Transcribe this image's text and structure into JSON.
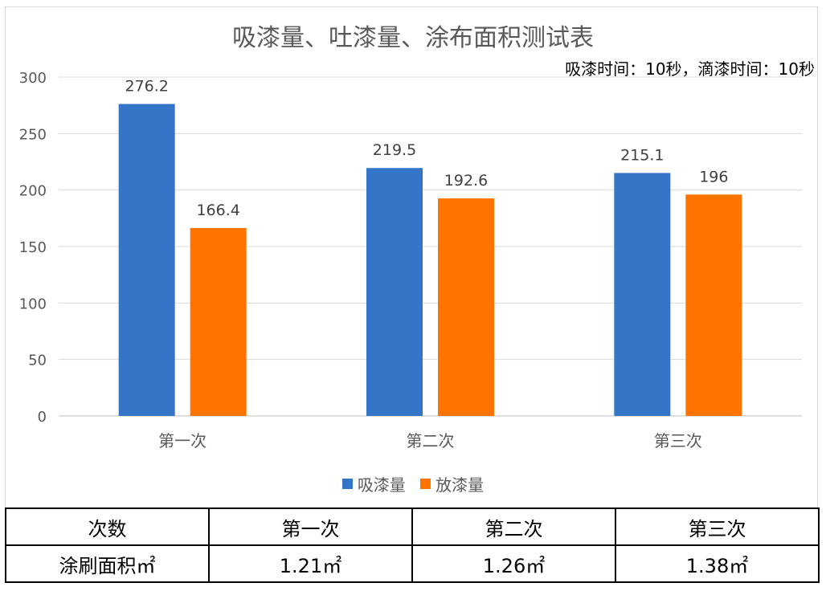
{
  "chart_data": {
    "type": "bar",
    "title": "吸漆量、吐漆量、涂布面积测试表",
    "subtitle": "吸漆时间：10秒，滴漆时间：10秒",
    "categories": [
      "第一次",
      "第二次",
      "第三次"
    ],
    "series": [
      {
        "name": "吸漆量",
        "values": [
          276.2,
          219.5,
          215.1
        ],
        "labels": [
          "276.2",
          "219.5",
          "215.1"
        ],
        "color": "#3575c8"
      },
      {
        "name": "放漆量",
        "values": [
          166.4,
          192.6,
          196
        ],
        "labels": [
          "166.4",
          "192.6",
          "196"
        ],
        "color": "#ff7400"
      }
    ],
    "ylim": [
      0,
      300
    ],
    "yticks": [
      "0",
      "50",
      "100",
      "150",
      "200",
      "250",
      "300"
    ],
    "xlabel": "",
    "ylabel": "",
    "grid": true,
    "legend": "bottom"
  },
  "table": {
    "header": [
      "次数",
      "第一次",
      "第二次",
      "第三次"
    ],
    "row": [
      "涂刷面积㎡",
      "1.21㎡",
      "1.26㎡",
      "1.38㎡"
    ]
  }
}
